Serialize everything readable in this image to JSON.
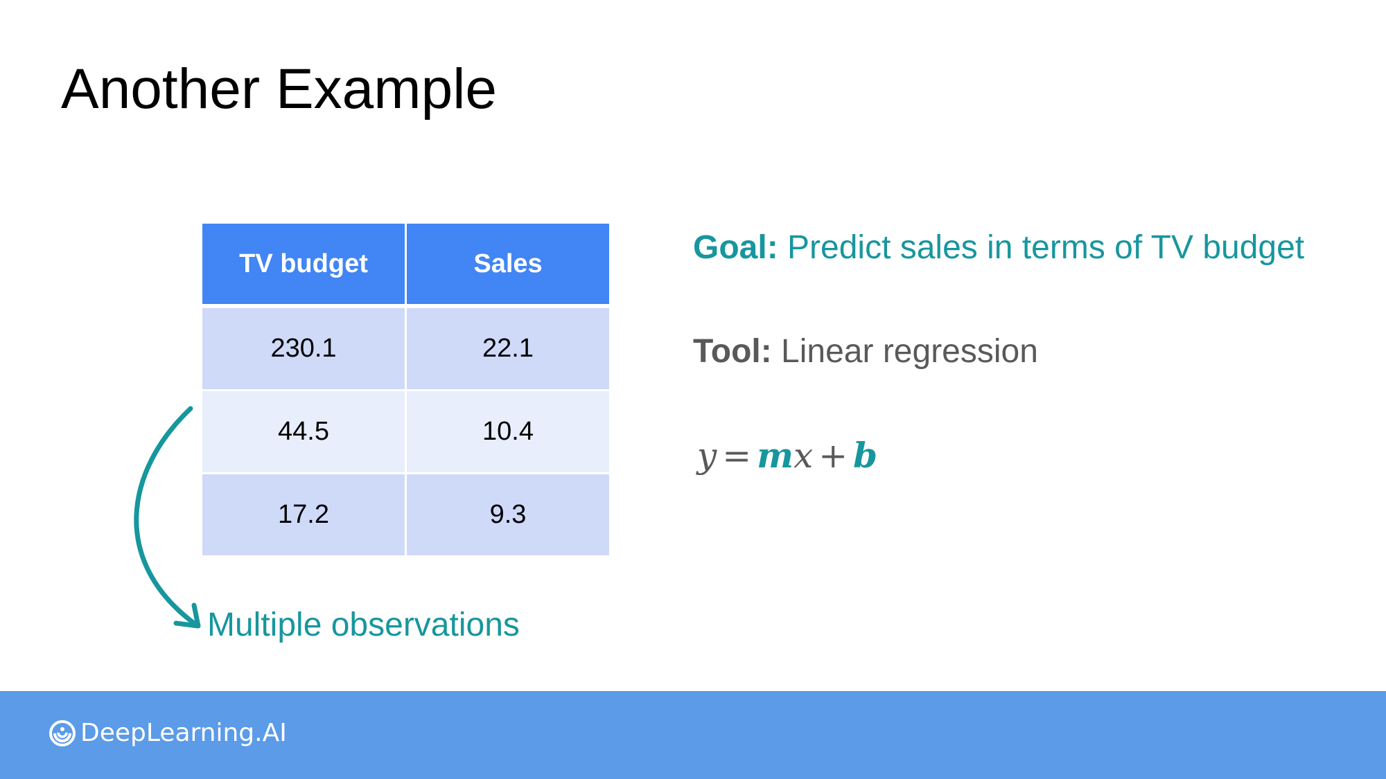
{
  "slide": {
    "title": "Another Example"
  },
  "table": {
    "headers": [
      "TV budget",
      "Sales"
    ],
    "rows": [
      [
        "230.1",
        "22.1"
      ],
      [
        "44.5",
        "10.4"
      ],
      [
        "17.2",
        "9.3"
      ]
    ]
  },
  "annotation": {
    "label": "Multiple observations"
  },
  "goal": {
    "label": "Goal:",
    "text": " Predict sales in terms of TV budget"
  },
  "tool": {
    "label": "Tool:",
    "text": " Linear regression"
  },
  "equation": {
    "y": "y",
    "equals": "=",
    "m": "m",
    "x": "x",
    "plus": "+",
    "b": "b"
  },
  "footer": {
    "brand": "DeepLearning.AI"
  },
  "colors": {
    "teal": "#17969e",
    "header_blue": "#4285f4",
    "footer_blue": "#5b9be8",
    "row_dark": "#cfdaf9",
    "row_light": "#e8eefc"
  }
}
